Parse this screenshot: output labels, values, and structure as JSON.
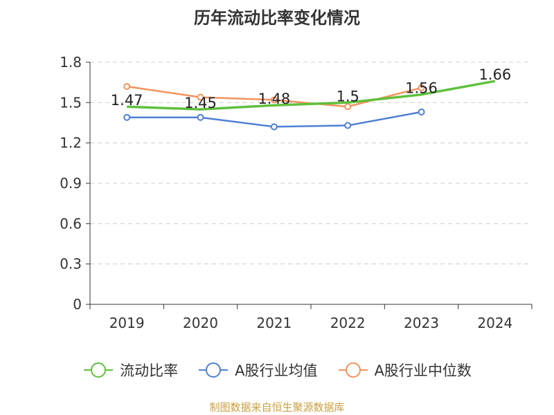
{
  "chart_data": {
    "type": "line",
    "title": "历年流动比率变化情况",
    "categories": [
      "2019",
      "2020",
      "2021",
      "2022",
      "2023",
      "2024"
    ],
    "ylim": [
      0,
      1.8
    ],
    "yticks": [
      "0",
      "0.3",
      "0.6",
      "0.9",
      "1.2",
      "1.5",
      "1.8"
    ],
    "grid": true,
    "legend_position": "bottom",
    "series": [
      {
        "name": "流动比率",
        "color": "#5fc03c",
        "values": [
          1.47,
          1.45,
          1.48,
          1.5,
          1.56,
          1.66
        ],
        "labels": [
          "1.47",
          "1.45",
          "1.48",
          "1.5",
          "1.56",
          "1.66"
        ]
      },
      {
        "name": "A股行业均值",
        "color": "#4f7fd4",
        "values": [
          1.39,
          1.39,
          1.32,
          1.33,
          1.43,
          null
        ]
      },
      {
        "name": "A股行业中位数",
        "color": "#f4925c",
        "values": [
          1.62,
          1.54,
          1.52,
          1.47,
          1.61,
          null
        ]
      }
    ]
  },
  "source": "制图数据来自恒生聚源数据库"
}
